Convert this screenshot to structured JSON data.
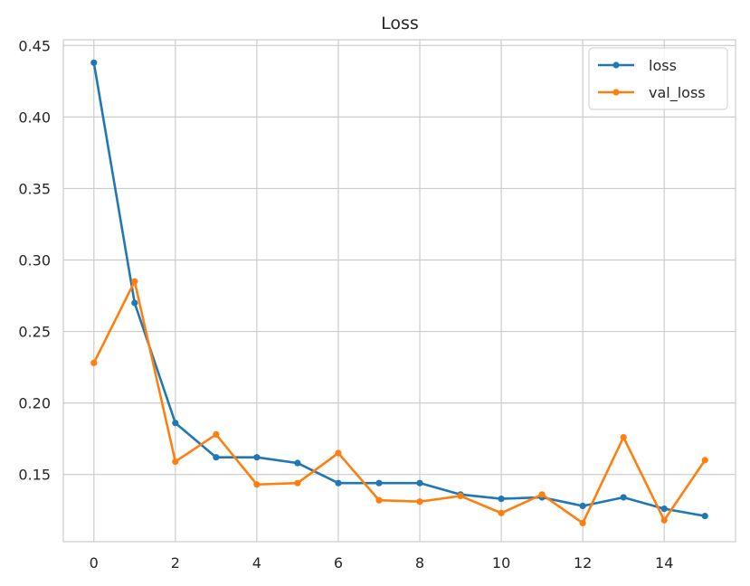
{
  "chart_data": {
    "type": "line",
    "title": "Loss",
    "xlabel": "",
    "ylabel": "",
    "x": [
      0,
      1,
      2,
      3,
      4,
      5,
      6,
      7,
      8,
      9,
      10,
      11,
      12,
      13,
      14,
      15
    ],
    "xlim": [
      -0.75,
      15.75
    ],
    "ylim": [
      0.103,
      0.454
    ],
    "xticks": [
      0,
      2,
      4,
      6,
      8,
      10,
      12,
      14
    ],
    "yticks": [
      0.15,
      0.2,
      0.25,
      0.3,
      0.35,
      0.4,
      0.45
    ],
    "xtick_labels": [
      "0",
      "2",
      "4",
      "6",
      "8",
      "10",
      "12",
      "14"
    ],
    "ytick_labels": [
      "0.15",
      "0.20",
      "0.25",
      "0.30",
      "0.35",
      "0.40",
      "0.45"
    ],
    "grid": true,
    "legend_position": "top-right",
    "series": [
      {
        "name": "loss",
        "color": "#1f77b4",
        "values": [
          0.438,
          0.27,
          0.186,
          0.162,
          0.162,
          0.158,
          0.144,
          0.144,
          0.144,
          0.136,
          0.133,
          0.134,
          0.128,
          0.134,
          0.126,
          0.121
        ]
      },
      {
        "name": "val_loss",
        "color": "#ff7f0e",
        "values": [
          0.228,
          0.285,
          0.159,
          0.178,
          0.143,
          0.144,
          0.165,
          0.132,
          0.131,
          0.135,
          0.123,
          0.136,
          0.116,
          0.176,
          0.118,
          0.16
        ]
      }
    ]
  }
}
